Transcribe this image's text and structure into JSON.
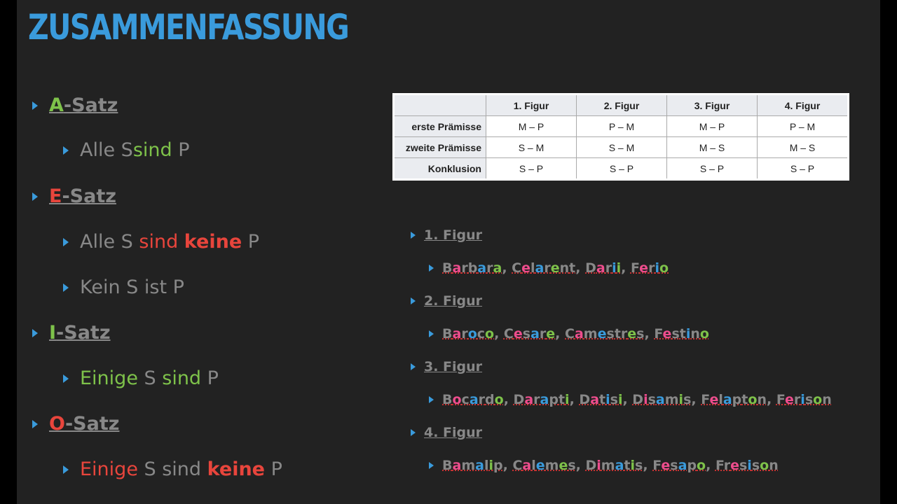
{
  "title": "ZUSAMMENFASSUNG",
  "left": {
    "a": {
      "head_letter": "A",
      "head_rest": "-Satz",
      "line": [
        "Alle S ",
        "sind",
        " P"
      ]
    },
    "e": {
      "head_letter": "E",
      "head_rest": "-Satz",
      "line1": [
        "Alle S ",
        "sind ",
        "keine",
        " P"
      ],
      "line2": "Kein S ist P"
    },
    "i": {
      "head_letter": "I",
      "head_rest": "-Satz",
      "line": [
        "Einige",
        " S ",
        "sind",
        " P"
      ]
    },
    "o": {
      "head_letter": "O",
      "head_rest": "-Satz",
      "line": [
        "Einige",
        " S sind ",
        "keine",
        " P"
      ]
    }
  },
  "table": {
    "headers": [
      "",
      "1. Figur",
      "2. Figur",
      "3. Figur",
      "4. Figur"
    ],
    "rows": [
      [
        "erste Prämisse",
        "M – P",
        "P – M",
        "M – P",
        "P – M"
      ],
      [
        "zweite Prämisse",
        "S – M",
        "S – M",
        "M – S",
        "M – S"
      ],
      [
        "Konklusion",
        "S – P",
        "S – P",
        "S – P",
        "S – P"
      ]
    ]
  },
  "figures": [
    {
      "label": "1. Figur",
      "names": [
        "Barbara",
        "Celarent",
        "Darii",
        "Ferio"
      ]
    },
    {
      "label": "2. Figur",
      "names": [
        "Baroco",
        "Cesare",
        "Camestres",
        "Festino"
      ]
    },
    {
      "label": "3. Figur",
      "names": [
        "Bocardo",
        "Darapti",
        "Datisi",
        "Disamis",
        "Felapton",
        "Ferison"
      ]
    },
    {
      "label": "4. Figur",
      "names": [
        "Bamalip",
        "Calemes",
        "Dimatis",
        "Fesapo",
        "Fresison"
      ]
    }
  ],
  "colors": {
    "title": "#3a9bdc",
    "green": "#7ec24a",
    "red": "#e8453c",
    "pink": "#ee4d8d",
    "blue": "#3a9bdc",
    "gray": "#888888"
  }
}
